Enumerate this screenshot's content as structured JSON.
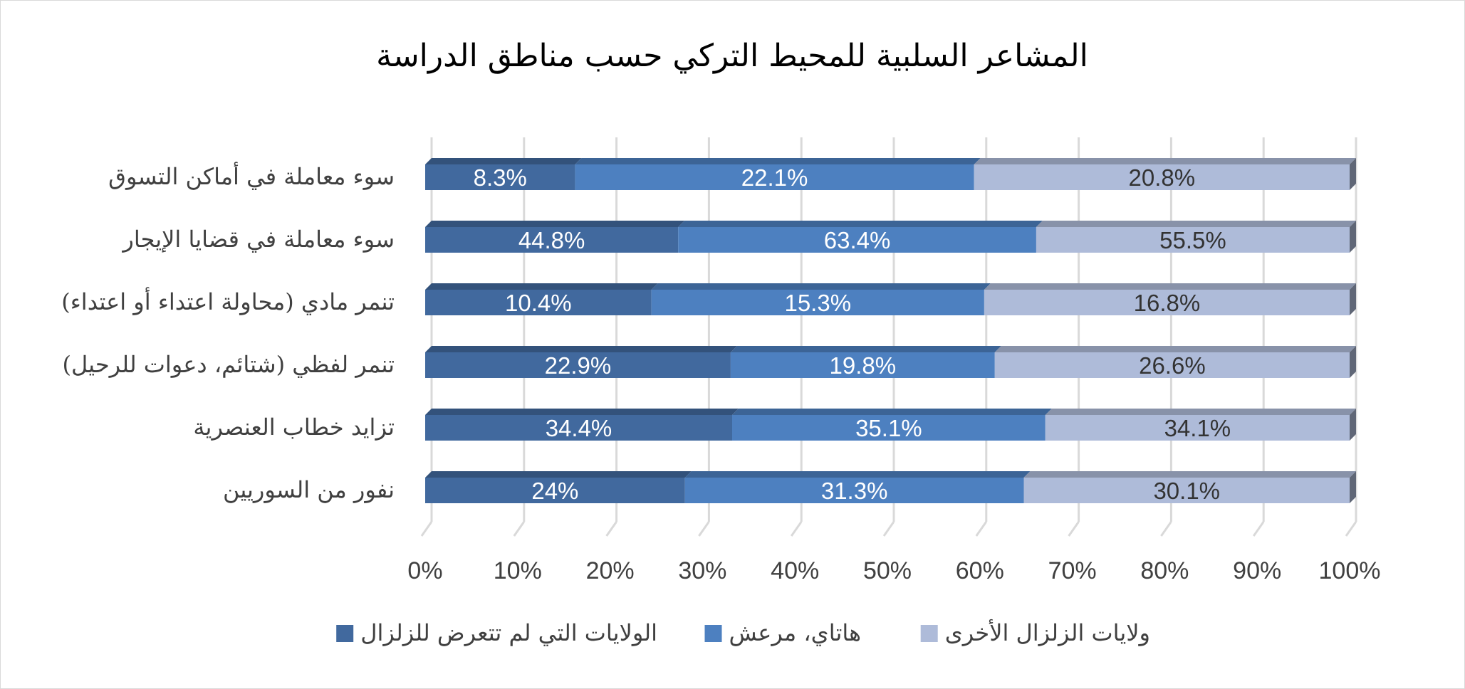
{
  "chart_data": {
    "type": "bar",
    "orientation": "horizontal",
    "stacking": "percent",
    "style": "3d",
    "title": "المشاعر السلبية للمحيط التركي حسب مناطق الدراسة",
    "categories": [
      "سوء معاملة في أماكن التسوق",
      "سوء معاملة في قضايا الإيجار",
      "تنمر مادي (محاولة اعتداء أو اعتداء)",
      "تنمر لفظي (شتائم، دعوات للرحيل)",
      "تزايد خطاب العنصرية",
      "نفور من السوريين"
    ],
    "series": [
      {
        "name": "الولايات التي لم تتعرض للزلزال",
        "color": "#41699e",
        "label_color": "#ffffff",
        "values": [
          8.3,
          44.8,
          10.4,
          22.9,
          34.4,
          24
        ],
        "labels": [
          "8.3%",
          "44.8%",
          "10.4%",
          "22.9%",
          "34.4%",
          "24%"
        ]
      },
      {
        "name": "هاتاي، مرعش",
        "color": "#4d80c0",
        "label_color": "#ffffff",
        "values": [
          22.1,
          63.4,
          15.3,
          19.8,
          35.1,
          31.3
        ],
        "labels": [
          "22.1%",
          "63.4%",
          "15.3%",
          "19.8%",
          "35.1%",
          "31.3%"
        ]
      },
      {
        "name": "ولايات الزلزال الأخرى",
        "color": "#aebbd9",
        "label_color": "#333333",
        "values": [
          20.8,
          55.5,
          16.8,
          26.6,
          34.1,
          30.1
        ],
        "labels": [
          "20.8%",
          "55.5%",
          "16.8%",
          "26.6%",
          "34.1%",
          "30.1%"
        ]
      }
    ],
    "x_ticks": [
      "0%",
      "10%",
      "20%",
      "30%",
      "40%",
      "50%",
      "60%",
      "70%",
      "80%",
      "90%",
      "100%"
    ],
    "xlim": [
      0,
      100
    ],
    "grid": true,
    "legend_position": "bottom"
  }
}
